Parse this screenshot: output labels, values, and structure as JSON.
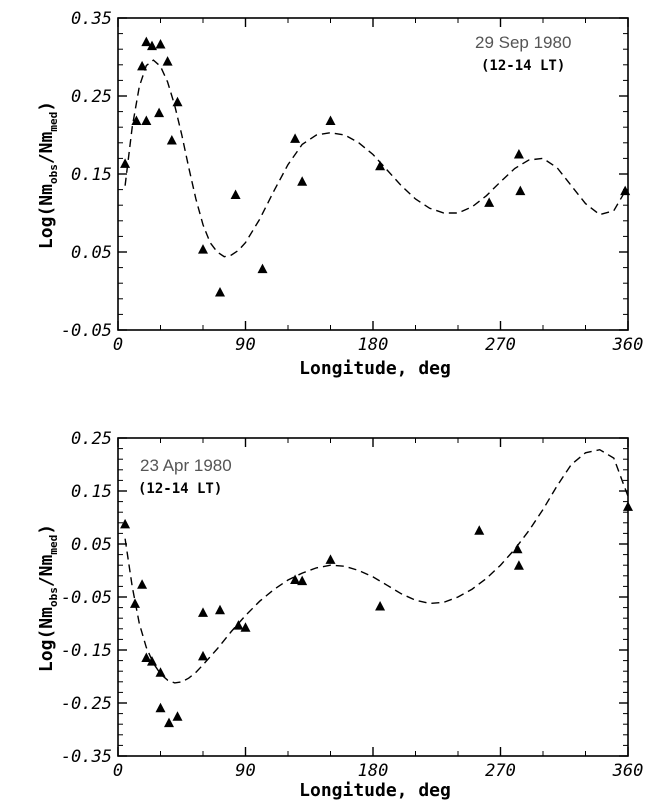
{
  "chart_data": [
    {
      "type": "scatter",
      "date_label": "29 Sep 1980",
      "lt_label": "(12-14 LT)",
      "xlabel": "Longitude, deg",
      "ylabel": {
        "main": "Log(Nm",
        "sub1": "obs",
        "mid": "/Nm",
        "sub2": "med",
        "end": ")"
      },
      "xlim": [
        0,
        360
      ],
      "ylim": [
        -0.05,
        0.35
      ],
      "xticks": [
        0,
        90,
        180,
        270,
        360
      ],
      "xtick_labels": [
        "0",
        "90",
        "180",
        "270",
        "360"
      ],
      "yticks": [
        -0.05,
        0.05,
        0.15,
        0.25,
        0.35
      ],
      "ytick_labels": [
        "-0.05",
        "0.05",
        "0.15",
        "0.25",
        "0.35"
      ],
      "observations": {
        "marker": "triangle",
        "x": [
          5,
          13,
          17,
          20,
          20,
          24,
          29,
          30,
          35,
          38,
          42,
          60,
          72,
          83,
          102,
          125,
          130,
          150,
          185,
          262,
          283,
          284,
          358
        ],
        "y": [
          0.163,
          0.218,
          0.288,
          0.319,
          0.218,
          0.314,
          0.228,
          0.316,
          0.294,
          0.193,
          0.242,
          0.053,
          -0.002,
          0.123,
          0.028,
          0.195,
          0.14,
          0.218,
          0.16,
          0.113,
          0.175,
          0.128,
          0.128
        ]
      },
      "fit_curve": {
        "style": "dashed",
        "x": [
          5,
          10,
          15,
          20,
          25,
          30,
          35,
          40,
          45,
          50,
          55,
          60,
          65,
          70,
          75,
          80,
          85,
          90,
          100,
          110,
          120,
          130,
          140,
          150,
          160,
          170,
          180,
          190,
          200,
          210,
          220,
          230,
          240,
          250,
          260,
          270,
          280,
          290,
          300,
          310,
          320,
          330,
          340,
          350,
          358
        ],
        "y": [
          0.135,
          0.21,
          0.262,
          0.289,
          0.296,
          0.288,
          0.268,
          0.238,
          0.2,
          0.158,
          0.118,
          0.085,
          0.062,
          0.05,
          0.044,
          0.046,
          0.052,
          0.062,
          0.092,
          0.128,
          0.162,
          0.188,
          0.2,
          0.203,
          0.2,
          0.19,
          0.175,
          0.155,
          0.135,
          0.118,
          0.106,
          0.1,
          0.1,
          0.108,
          0.122,
          0.14,
          0.157,
          0.168,
          0.17,
          0.158,
          0.135,
          0.112,
          0.098,
          0.103,
          0.128
        ]
      }
    },
    {
      "type": "scatter",
      "date_label": "23 Apr 1980",
      "lt_label": "(12-14 LT)",
      "xlabel": "Longitude, deg",
      "ylabel": {
        "main": "Log(Nm",
        "sub1": "obs",
        "mid": "/Nm",
        "sub2": "med",
        "end": ")"
      },
      "xlim": [
        0,
        360
      ],
      "ylim": [
        -0.35,
        0.25
      ],
      "xticks": [
        0,
        90,
        180,
        270,
        360
      ],
      "xtick_labels": [
        "0",
        "90",
        "180",
        "270",
        "360"
      ],
      "yticks": [
        -0.35,
        -0.25,
        -0.15,
        -0.05,
        0.05,
        0.15,
        0.25
      ],
      "ytick_labels": [
        "-0.35",
        "-0.25",
        "-0.15",
        "-0.05",
        "0.05",
        "0.15",
        "0.25"
      ],
      "observations": {
        "marker": "triangle",
        "x": [
          5,
          12,
          17,
          20,
          24,
          30,
          30,
          36,
          42,
          60,
          60,
          72,
          85,
          90,
          125,
          130,
          150,
          185,
          255,
          282,
          283,
          360
        ],
        "y": [
          0.087,
          -0.063,
          -0.027,
          -0.165,
          -0.172,
          -0.193,
          -0.26,
          -0.288,
          -0.276,
          -0.162,
          -0.08,
          -0.075,
          -0.104,
          -0.108,
          -0.018,
          -0.02,
          0.02,
          -0.068,
          0.075,
          0.04,
          0.009,
          0.12
        ]
      },
      "fit_curve": {
        "style": "dashed",
        "x": [
          5,
          10,
          15,
          20,
          25,
          30,
          35,
          40,
          45,
          50,
          55,
          60,
          70,
          80,
          90,
          100,
          110,
          120,
          130,
          140,
          150,
          160,
          170,
          180,
          190,
          200,
          210,
          220,
          230,
          240,
          250,
          260,
          270,
          280,
          290,
          300,
          310,
          320,
          330,
          340,
          350,
          360
        ],
        "y": [
          0.06,
          -0.03,
          -0.1,
          -0.145,
          -0.175,
          -0.195,
          -0.207,
          -0.212,
          -0.21,
          -0.203,
          -0.192,
          -0.178,
          -0.148,
          -0.115,
          -0.085,
          -0.058,
          -0.036,
          -0.018,
          -0.005,
          0.005,
          0.01,
          0.008,
          0.0,
          -0.012,
          -0.028,
          -0.044,
          -0.056,
          -0.062,
          -0.06,
          -0.05,
          -0.035,
          -0.015,
          0.01,
          0.04,
          0.075,
          0.115,
          0.16,
          0.2,
          0.222,
          0.228,
          0.212,
          0.14
        ]
      }
    }
  ]
}
